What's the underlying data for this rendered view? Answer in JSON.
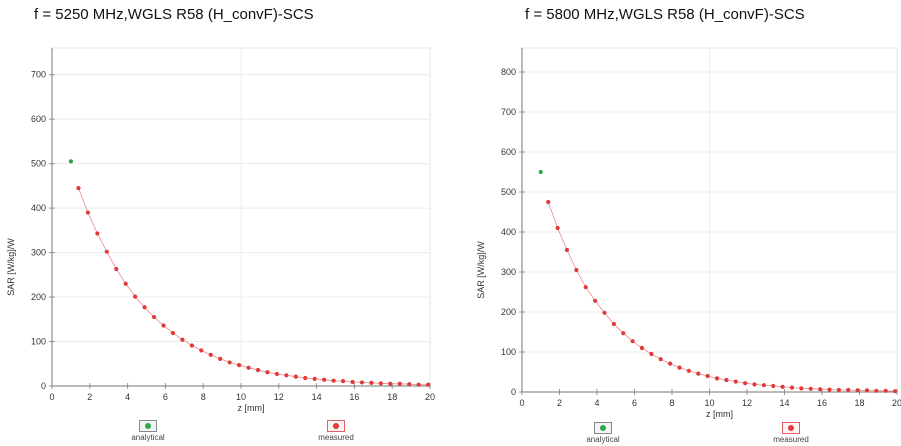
{
  "chart_data": [
    {
      "type": "scatter",
      "title": "f = 5250 MHz,WGLS R58 (H_convF)-SCS",
      "xlabel": "z [mm]",
      "ylabel": "SAR [W/kg]/W",
      "xlim": [
        0,
        20
      ],
      "ylim": [
        0,
        760
      ],
      "xticks": [
        "0",
        "2",
        "4",
        "6",
        "8",
        "10",
        "12",
        "14",
        "16",
        "18",
        "20"
      ],
      "yticks": [
        "0",
        "100",
        "200",
        "300",
        "400",
        "500",
        "600",
        "700"
      ],
      "grid": true,
      "legend_position": "bottom",
      "series": [
        {
          "name": "analytical",
          "color": "#2aa84a",
          "x": [
            1.0
          ],
          "y": [
            505
          ]
        },
        {
          "name": "measured",
          "color": "#e03a3a",
          "x": [
            1.4,
            1.9,
            2.4,
            2.9,
            3.4,
            3.9,
            4.4,
            4.9,
            5.4,
            5.9,
            6.4,
            6.9,
            7.4,
            7.9,
            8.4,
            8.9,
            9.4,
            9.9,
            10.4,
            10.9,
            11.4,
            11.9,
            12.4,
            12.9,
            13.4,
            13.9,
            14.4,
            14.9,
            15.4,
            15.9,
            16.4,
            16.9,
            17.4,
            17.9,
            18.4,
            18.9,
            19.4,
            19.9
          ],
          "y": [
            445,
            390,
            343,
            302,
            263,
            230,
            201,
            177,
            155,
            136,
            119,
            104,
            91,
            80,
            70,
            61,
            53,
            47,
            41,
            36,
            31,
            27,
            24,
            21,
            18,
            16,
            14,
            12,
            11,
            9,
            8,
            7,
            6,
            5,
            5,
            4,
            3,
            3
          ]
        }
      ]
    },
    {
      "type": "scatter",
      "title": "f = 5800 MHz,WGLS R58 (H_convF)-SCS",
      "xlabel": "z [mm]",
      "ylabel": "SAR [W/kg]/W",
      "xlim": [
        0,
        20
      ],
      "ylim": [
        0,
        860
      ],
      "xticks": [
        "0",
        "2",
        "4",
        "6",
        "8",
        "10",
        "12",
        "14",
        "16",
        "18",
        "20"
      ],
      "yticks": [
        "0",
        "100",
        "200",
        "300",
        "400",
        "500",
        "600",
        "700",
        "800"
      ],
      "grid": true,
      "legend_position": "bottom",
      "series": [
        {
          "name": "analytical",
          "color": "#2aa84a",
          "x": [
            1.0
          ],
          "y": [
            550
          ]
        },
        {
          "name": "measured",
          "color": "#e03a3a",
          "x": [
            1.4,
            1.9,
            2.4,
            2.9,
            3.4,
            3.9,
            4.4,
            4.9,
            5.4,
            5.9,
            6.4,
            6.9,
            7.4,
            7.9,
            8.4,
            8.9,
            9.4,
            9.9,
            10.4,
            10.9,
            11.4,
            11.9,
            12.4,
            12.9,
            13.4,
            13.9,
            14.4,
            14.9,
            15.4,
            15.9,
            16.4,
            16.9,
            17.4,
            17.9,
            18.4,
            18.9,
            19.4,
            19.9
          ],
          "y": [
            475,
            410,
            355,
            305,
            262,
            228,
            198,
            170,
            147,
            127,
            110,
            95,
            82,
            71,
            61,
            53,
            46,
            40,
            34,
            30,
            26,
            22,
            19,
            17,
            15,
            13,
            11,
            9,
            8,
            7,
            6,
            5,
            5,
            4,
            4,
            3,
            3,
            2
          ]
        }
      ]
    }
  ]
}
